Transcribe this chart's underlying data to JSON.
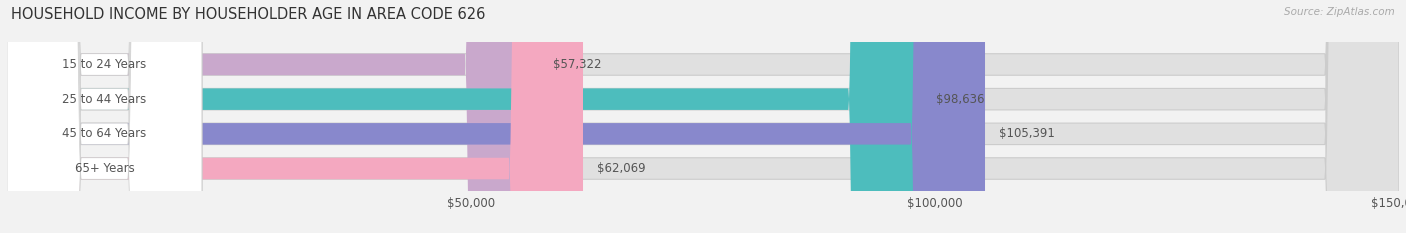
{
  "title": "HOUSEHOLD INCOME BY HOUSEHOLDER AGE IN AREA CODE 626",
  "source": "Source: ZipAtlas.com",
  "categories": [
    "15 to 24 Years",
    "25 to 44 Years",
    "45 to 64 Years",
    "65+ Years"
  ],
  "values": [
    57322,
    98636,
    105391,
    62069
  ],
  "bar_colors": [
    "#c9a8cc",
    "#4dbdbd",
    "#8888cc",
    "#f4a8c0"
  ],
  "background_color": "#f2f2f2",
  "bar_bg_color": "#e0e0e0",
  "label_color": "#555555",
  "title_color": "#333333",
  "source_color": "#aaaaaa",
  "xlim": [
    0,
    150000
  ],
  "bar_height": 0.62,
  "title_fontsize": 10.5,
  "label_fontsize": 8.5,
  "value_fontsize": 8.5,
  "tick_fontsize": 8.5,
  "rounding_size": 8000
}
